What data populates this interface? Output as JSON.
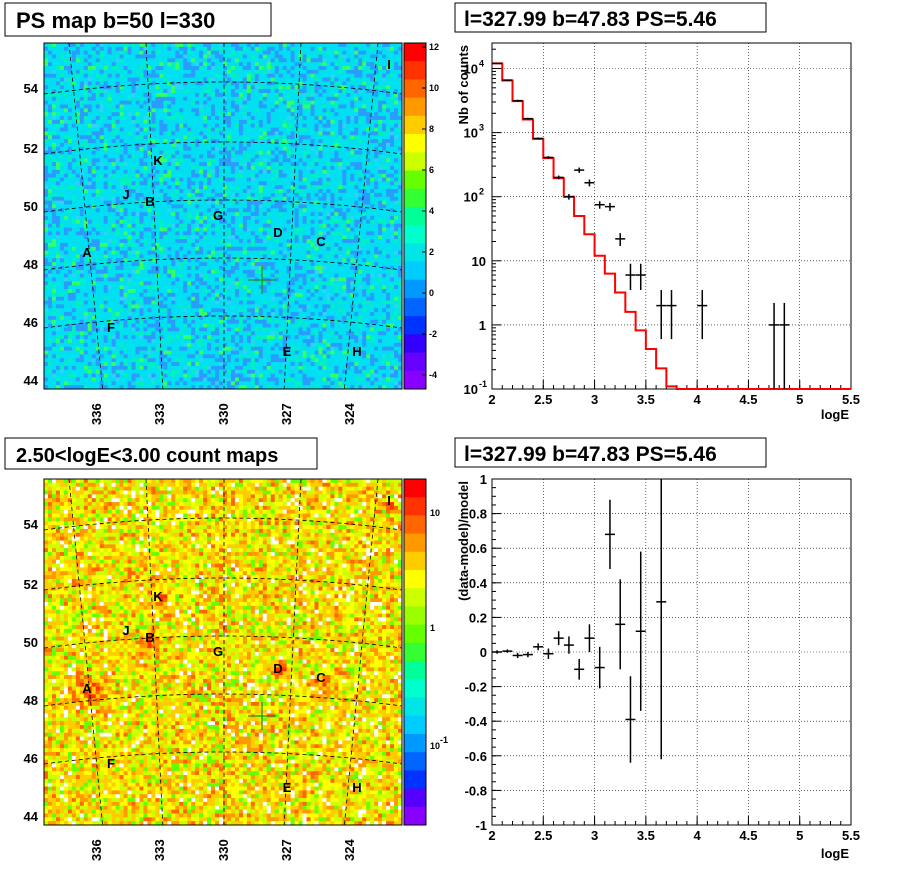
{
  "panels": {
    "top_left_title": "PS map b=50 l=330",
    "top_right_title": "l=327.99 b=47.83 PS=5.46",
    "bottom_left_title": "2.50<logE<3.00 count maps",
    "bottom_right_title": "l=327.99 b=47.83 PS=5.46"
  },
  "maps": {
    "y_ticks": [
      "44",
      "46",
      "48",
      "50",
      "52",
      "54"
    ],
    "x_ticks": [
      "336",
      "333",
      "330",
      "327",
      "324"
    ],
    "sources": [
      "I",
      "K",
      "J",
      "B",
      "G",
      "D",
      "C",
      "A",
      "F",
      "E",
      "H"
    ],
    "ps_colorbar_ticks": [
      "12",
      "10",
      "8",
      "6",
      "4",
      "2",
      "0",
      "-2",
      "-4"
    ],
    "count_colorbar_ticks": [
      "10",
      "1",
      "10",
      "-1"
    ],
    "colors": {
      "cyan": "#00e5e5",
      "green": "#33ff00",
      "yellow": "#ffff00",
      "orange": "#ff9900",
      "red": "#ff2200",
      "blue": "#0077ff",
      "violet": "#8800ff"
    }
  },
  "chart_data": [
    {
      "type": "heatmap",
      "title": "PS map b=50 l=330",
      "x_ticks": [
        "336",
        "333",
        "330",
        "327",
        "324"
      ],
      "y_ticks": [
        44,
        46,
        48,
        50,
        52,
        54
      ],
      "zlim": [
        -5,
        12
      ],
      "marker": {
        "l": 327.99,
        "b": 47.83
      }
    },
    {
      "type": "line",
      "title": "l=327.99 b=47.83 PS=5.46",
      "xlabel": "logE",
      "ylabel": "Nb of counts",
      "xlim": [
        2,
        5.5
      ],
      "ylog": true,
      "ylim": [
        0.1,
        25000
      ],
      "x_ticks": [
        "2",
        "2.5",
        "3",
        "3.5",
        "4",
        "4.5",
        "5",
        "5.5"
      ],
      "grid": true,
      "series": [
        {
          "kind": "model_step",
          "color": "#ff0000",
          "edges": [
            2,
            2.1,
            2.2,
            2.3,
            2.4,
            2.5,
            2.6,
            2.7,
            2.8,
            2.9,
            3,
            3.1,
            3.2,
            3.3,
            3.4,
            3.5,
            3.6,
            3.7,
            3.8,
            3.9,
            4,
            4.1,
            4.2,
            4.3,
            4.4,
            4.5,
            4.6,
            4.7,
            4.8,
            4.9,
            5,
            5.1,
            5.2,
            5.3,
            5.4,
            5.5
          ],
          "values": [
            12000,
            6500,
            3100,
            1600,
            800,
            400,
            195,
            100,
            50,
            26,
            12,
            6.3,
            3.2,
            1.6,
            0.82,
            0.42,
            0.21,
            0.11,
            0.1,
            0.1,
            0.1,
            0.1,
            0.1,
            0.1,
            0.1,
            0.1,
            0.1,
            0.1,
            0.1,
            0.1,
            0.1,
            0.1,
            0.1,
            0.1,
            0.1
          ]
        },
        {
          "kind": "data_points",
          "color": "#000000",
          "x": [
            2.05,
            2.15,
            2.25,
            2.35,
            2.45,
            2.55,
            2.65,
            2.75,
            2.85,
            2.95,
            3.05,
            3.15,
            3.25,
            3.35,
            3.45,
            3.65,
            3.75,
            4.05,
            4.75,
            4.85
          ],
          "y": [
            12000,
            6600,
            3150,
            1650,
            810,
            410,
            200,
            100,
            260,
            165,
            75,
            70,
            22,
            6,
            6,
            2,
            2,
            2,
            1,
            1
          ],
          "ylo": [
            11800,
            6450,
            3050,
            1600,
            780,
            390,
            186,
            90,
            235,
            145,
            65,
            60,
            17,
            3.5,
            3.5,
            0.6,
            0.6,
            0.6,
            0.1,
            0.1
          ],
          "yhi": [
            12200,
            6750,
            3250,
            1700,
            840,
            430,
            214,
            110,
            285,
            185,
            85,
            80,
            27,
            9,
            9,
            3.5,
            3.5,
            3.5,
            2.2,
            2.2
          ]
        }
      ]
    },
    {
      "type": "heatmap",
      "title": "2.50<logE<3.00 count maps",
      "x_ticks": [
        "336",
        "333",
        "330",
        "327",
        "324"
      ],
      "y_ticks": [
        44,
        46,
        48,
        50,
        52,
        54
      ],
      "zlog": true,
      "marker": {
        "l": 327.99,
        "b": 47.83
      }
    },
    {
      "type": "scatter",
      "title": "l=327.99 b=47.83 PS=5.46",
      "xlabel": "logE",
      "ylabel": "(data-model)/model",
      "xlim": [
        2,
        5.5
      ],
      "ylim": [
        -1,
        1
      ],
      "x_ticks": [
        "2",
        "2.5",
        "3",
        "3.5",
        "4",
        "4.5",
        "5",
        "5.5"
      ],
      "y_ticks": [
        "-1",
        "-0.8",
        "-0.6",
        "-0.4",
        "-0.2",
        "0",
        "0.2",
        "0.4",
        "0.6",
        "0.8",
        "1"
      ],
      "grid": true,
      "series": [
        {
          "name": "",
          "color": "#000000",
          "x": [
            2.05,
            2.15,
            2.25,
            2.35,
            2.45,
            2.55,
            2.65,
            2.75,
            2.85,
            2.95,
            3.05,
            3.15,
            3.25,
            3.35,
            3.45,
            3.65
          ],
          "y": [
            0.0,
            0.005,
            -0.02,
            -0.015,
            0.03,
            -0.01,
            0.08,
            0.04,
            -0.1,
            0.08,
            -0.09,
            0.68,
            0.16,
            -0.39,
            0.12,
            0.29
          ],
          "err": [
            0.01,
            0.01,
            0.015,
            0.015,
            0.02,
            0.03,
            0.04,
            0.05,
            0.06,
            0.08,
            0.12,
            0.2,
            0.26,
            0.25,
            0.46,
            0.91
          ]
        }
      ]
    }
  ]
}
